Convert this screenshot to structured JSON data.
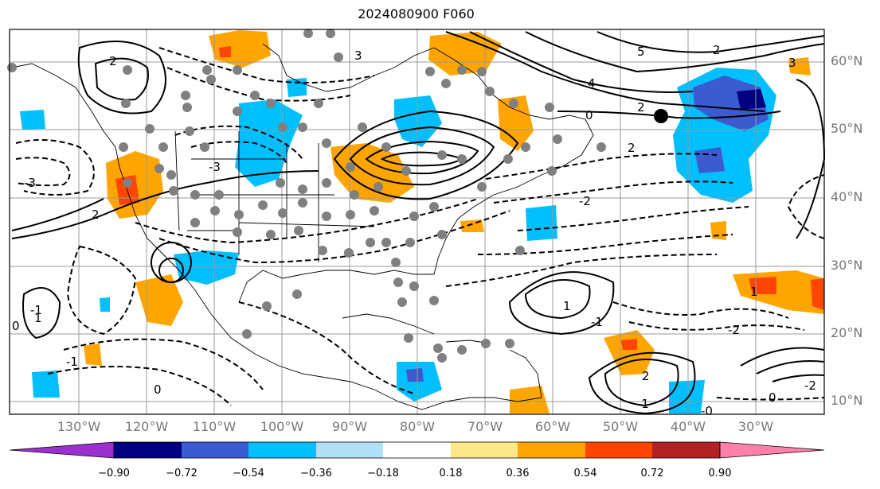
{
  "title": "2024080900 F060",
  "lat_labels": [
    "60°N",
    "50°N",
    "40°N",
    "30°N",
    "20°N",
    "10°N"
  ],
  "lon_labels": [
    "130°W",
    "120°W",
    "110°W",
    "100°W",
    "90°W",
    "80°W",
    "70°W",
    "60°W",
    "50°W",
    "40°W",
    "30°W"
  ],
  "colorbar": {
    "ticks": [
      "−0.90",
      "−0.72",
      "−0.54",
      "−0.36",
      "−0.18",
      "0.18",
      "0.36",
      "0.54",
      "0.72",
      "0.90"
    ],
    "colors": [
      "#9b30d0",
      "#000080",
      "#3c5bd1",
      "#00bfff",
      "#b0e0f8",
      "#ffffff",
      "#fde88a",
      "#ffa500",
      "#ff4500",
      "#b22222",
      "#ff80aa"
    ]
  },
  "contour_labels": [
    "2",
    "2",
    "2",
    "2",
    "3",
    "4",
    "5",
    "3",
    "2",
    "1",
    "0",
    "-1",
    "-1",
    "-2",
    "-2",
    "-3",
    "-3",
    "-1",
    "0",
    "0",
    "-1",
    "1",
    "1",
    "2",
    "-2",
    "0",
    "-0"
  ]
}
